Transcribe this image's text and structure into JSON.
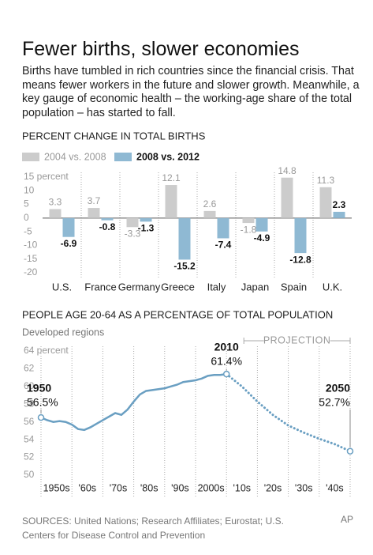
{
  "title": "Fewer births, slower economies",
  "subtitle": "Births have tumbled in rich countries since the financial crisis. That means fewer workers in the future and slower growth. Meanwhile, a key gauge of economic health – the working-age share of the total population – has started to fall.",
  "chart_data": [
    {
      "type": "bar",
      "title": "PERCENT CHANGE IN TOTAL BIRTHS",
      "categories": [
        "U.S.",
        "France",
        "Germany",
        "Greece",
        "Italy",
        "Japan",
        "Spain",
        "U.K."
      ],
      "series": [
        {
          "name": "2004 vs. 2008",
          "color": "#cccccc",
          "values": [
            3.3,
            3.7,
            -3.3,
            12.1,
            2.6,
            -1.8,
            14.8,
            11.3
          ]
        },
        {
          "name": "2008 vs. 2012",
          "color": "#8fb9d3",
          "values": [
            -6.9,
            -0.8,
            -1.3,
            -15.2,
            -7.4,
            -4.9,
            -12.8,
            2.3
          ]
        }
      ],
      "ylim": [
        -20,
        15
      ],
      "yticks": [
        {
          "value": 15,
          "label": "15 percent"
        },
        10,
        5,
        0,
        -5,
        -10,
        -15,
        -20
      ],
      "grid": false,
      "legend": "top-left"
    },
    {
      "type": "line",
      "title": "PEOPLE AGE 20-64 AS A PERCENTAGE OF TOTAL POPULATION",
      "subtitle": "Developed regions",
      "x": [
        1950,
        1952,
        1954,
        1956,
        1958,
        1960,
        1962,
        1964,
        1966,
        1968,
        1970,
        1972,
        1974,
        1976,
        1978,
        1980,
        1982,
        1984,
        1986,
        1988,
        1990,
        1992,
        1994,
        1996,
        1998,
        2000,
        2002,
        2004,
        2006,
        2008,
        2010,
        2015,
        2020,
        2025,
        2030,
        2035,
        2040,
        2045,
        2050
      ],
      "series": [
        {
          "color": "#6a9fc2",
          "style": "solid",
          "values": [
            56.5,
            56.2,
            56.0,
            56.1,
            56.0,
            55.7,
            55.2,
            55.1,
            55.4,
            55.8,
            56.2,
            56.6,
            57.0,
            56.8,
            57.4,
            58.3,
            59.1,
            59.5,
            59.6,
            59.7,
            59.8,
            60.0,
            60.2,
            60.5,
            60.6,
            60.7,
            60.9,
            61.2,
            61.3,
            61.3,
            61.4,
            null,
            null,
            null,
            null,
            null,
            null,
            null,
            null
          ]
        },
        {
          "color": "#6a9fc2",
          "style": "dotted",
          "values": [
            null,
            null,
            null,
            null,
            null,
            null,
            null,
            null,
            null,
            null,
            null,
            null,
            null,
            null,
            null,
            null,
            null,
            null,
            null,
            null,
            null,
            null,
            null,
            null,
            null,
            null,
            null,
            null,
            null,
            null,
            61.4,
            60.0,
            58.3,
            56.8,
            55.6,
            54.8,
            54.1,
            53.5,
            52.7
          ]
        }
      ],
      "xlim": [
        1950,
        2050
      ],
      "xticks": [
        {
          "value": 1950,
          "label": "1950s"
        },
        {
          "value": 1960,
          "label": "'60s"
        },
        {
          "value": 1970,
          "label": "'70s"
        },
        {
          "value": 1980,
          "label": "'80s"
        },
        {
          "value": 1990,
          "label": "'90s"
        },
        {
          "value": 2000,
          "label": "2000s"
        },
        {
          "value": 2010,
          "label": "'10s"
        },
        {
          "value": 2020,
          "label": "'20s"
        },
        {
          "value": 2030,
          "label": "'30s"
        },
        {
          "value": 2040,
          "label": "'40s"
        }
      ],
      "ylim": [
        50,
        64
      ],
      "yticks": [
        {
          "value": 64,
          "label": "64 percent"
        },
        62,
        60,
        58,
        56,
        54,
        52,
        50
      ],
      "annotations": [
        {
          "year": "1950",
          "label": "56.5%"
        },
        {
          "year": "2010",
          "label": "61.4%"
        },
        {
          "year": "2050",
          "label": "52.7%"
        }
      ],
      "projection_label": "PROJECTION",
      "grid": false
    }
  ],
  "sources": "SOURCES: United Nations; Research Affiliates; Eurostat; U.S. Centers for Disease Control and Prevention",
  "credit": "AP"
}
